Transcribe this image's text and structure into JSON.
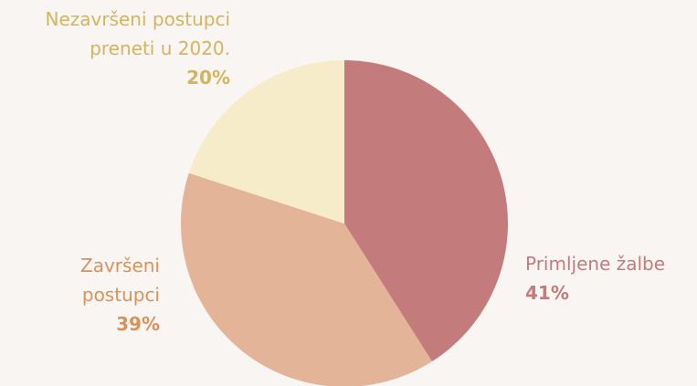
{
  "chart_data": {
    "type": "pie",
    "categories": [
      "Primljene žalbe",
      "Završeni postupci",
      "Nezavršeni postupci preneti u 2020."
    ],
    "values": [
      41,
      39,
      20
    ],
    "value_labels": [
      "41%",
      "39%",
      "20%"
    ],
    "colors": [
      "#c47b7b",
      "#e3b497",
      "#f7ecca"
    ],
    "label_colors": [
      "#c47b7b",
      "#d9925a",
      "#d4b45c"
    ]
  }
}
